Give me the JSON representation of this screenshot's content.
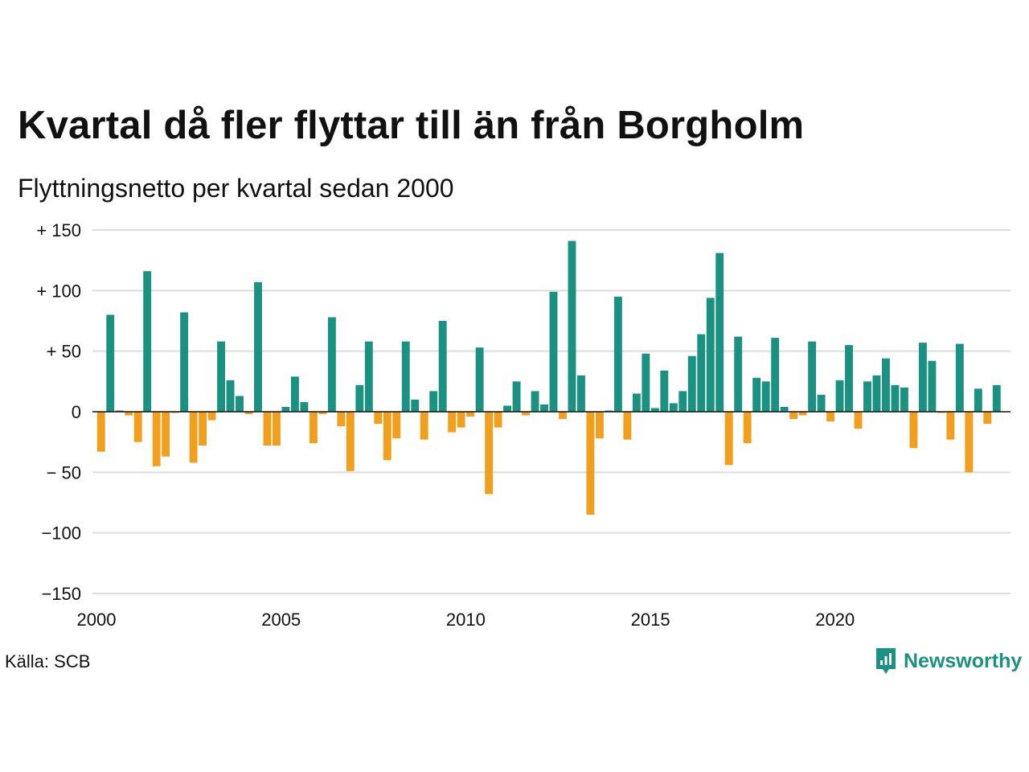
{
  "title": "Kvartal då fler flyttar till än från Borgholm",
  "subtitle": "Flyttningsnetto per kvartal sedan 2000",
  "source": "Källa: SCB",
  "brand": {
    "name": "Newsworthy",
    "icon": "newsworthy-logo-icon",
    "color": "#1a9181"
  },
  "colors": {
    "positive": "#1a9181",
    "negative": "#f29f1d",
    "grid": "#dddddd",
    "axis": "#111111"
  },
  "chart_data": {
    "type": "bar",
    "title": "Kvartal då fler flyttar till än från Borgholm",
    "subtitle": "Flyttningsnetto per kvartal sedan 2000",
    "xlabel": "",
    "ylabel": "",
    "ylim": [
      -150,
      150
    ],
    "xlim": [
      2000,
      2024.75
    ],
    "grid": true,
    "y_ticks": [
      {
        "value": 150,
        "label": "+ 150"
      },
      {
        "value": 100,
        "label": "+ 100"
      },
      {
        "value": 50,
        "label": "+  50"
      },
      {
        "value": 0,
        "label": "0"
      },
      {
        "value": -50,
        "label": "− 50"
      },
      {
        "value": -100,
        "label": "−100"
      },
      {
        "value": -150,
        "label": "−150"
      }
    ],
    "x_ticks": [
      {
        "value": 2000,
        "label": "2000"
      },
      {
        "value": 2005,
        "label": "2005"
      },
      {
        "value": 2010,
        "label": "2010"
      },
      {
        "value": 2015,
        "label": "2015"
      },
      {
        "value": 2020,
        "label": "2020"
      }
    ],
    "start_year": 2000,
    "values": [
      -33,
      80,
      1,
      -3,
      -25,
      116,
      -45,
      -37,
      -1,
      82,
      -42,
      -28,
      -7,
      58,
      26,
      13,
      -2,
      107,
      -28,
      -28,
      4,
      29,
      8,
      -26,
      -2,
      78,
      -12,
      -49,
      22,
      58,
      -10,
      -40,
      -22,
      58,
      10,
      -23,
      17,
      75,
      -17,
      -13,
      -4,
      53,
      -68,
      -13,
      5,
      25,
      -3,
      17,
      6,
      99,
      -6,
      141,
      30,
      -85,
      -22,
      1,
      95,
      -23,
      15,
      48,
      3,
      34,
      7,
      17,
      46,
      64,
      94,
      131,
      -44,
      62,
      -26,
      28,
      25,
      61,
      4,
      -6,
      -3,
      58,
      14,
      -8,
      26,
      55,
      -14,
      25,
      30,
      44,
      22,
      20,
      -30,
      57,
      42,
      -1,
      -23,
      56,
      -50,
      19,
      -10,
      22
    ]
  }
}
